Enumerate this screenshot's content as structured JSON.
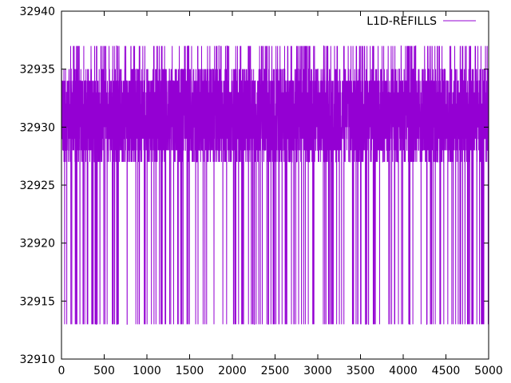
{
  "chart_data": {
    "type": "line",
    "title": "",
    "xlabel": "",
    "ylabel": "",
    "xlim": [
      0,
      5000
    ],
    "ylim": [
      32910,
      32940
    ],
    "x_ticks": [
      0,
      500,
      1000,
      1500,
      2000,
      2500,
      3000,
      3500,
      4000,
      4500,
      5000
    ],
    "y_ticks": [
      32910,
      32915,
      32920,
      32925,
      32930,
      32935,
      32940
    ],
    "grid": false,
    "legend_position": "top-right",
    "series": [
      {
        "name": "L1D-REFILLS",
        "color": "#9400d3",
        "x_range": [
          0,
          5000
        ],
        "typical_band": [
          32927,
          32935
        ],
        "min": 32913,
        "max": 32937,
        "x": [
          0,
          2,
          4,
          6,
          8,
          10,
          12,
          14,
          16,
          18,
          20,
          22,
          24,
          26,
          28,
          30,
          32,
          34,
          36,
          38,
          40,
          42,
          44,
          46,
          48,
          50
        ],
        "y": [
          32930,
          32913,
          32936,
          32927,
          32935,
          32913,
          32930,
          32927,
          32936,
          32928,
          32913,
          32935,
          32927,
          32930,
          32936,
          32913,
          32927,
          32935,
          32930,
          32913,
          32928,
          32936,
          32927,
          32935,
          32913,
          32930
        ]
      }
    ]
  }
}
